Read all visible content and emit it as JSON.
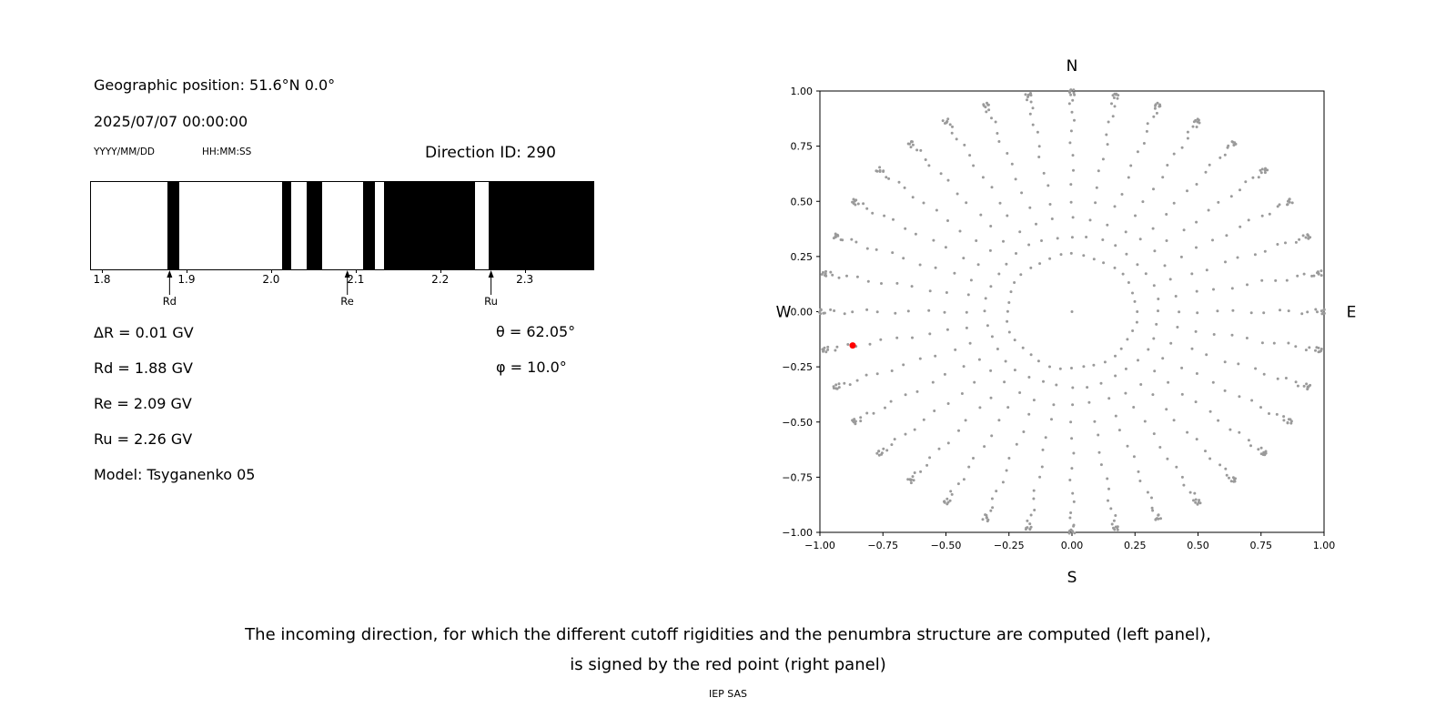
{
  "left_panel": {
    "geographic_position": "Geographic position: 51.6°N 0.0°",
    "datetime": "2025/07/07 00:00:00",
    "date_format_label": "YYYY/MM/DD",
    "time_format_label": "HH:MM:SS",
    "direction_id": "Direction ID: 290",
    "marker_arrow_icon": "up-arrow",
    "info": {
      "delta_r": "ΔR = 0.01 GV",
      "rd": "Rd = 1.88 GV",
      "re": "Re = 2.09 GV",
      "ru": "Ru = 2.26 GV",
      "theta": "θ = 62.05°",
      "phi": "φ = 10.0°",
      "model": "Model: Tsyganenko 05"
    }
  },
  "caption": {
    "line1": "The incoming direction, for which the different cutoff rigidities and the penumbra structure are computed (left panel),",
    "line2": "is signed by the red point (right panel)",
    "credit": "IEP SAS"
  },
  "chart_data": [
    {
      "type": "bar",
      "name": "penumbra-structure",
      "xlim": [
        1.786,
        2.38
      ],
      "xticks": [
        1.8,
        1.9,
        2.0,
        2.1,
        2.2,
        2.3
      ],
      "xtick_labels": [
        "1.8",
        "1.9",
        "2.0",
        "2.1",
        "2.2",
        "2.3"
      ],
      "black_intervals_gv": [
        [
          1.876,
          1.89
        ],
        [
          2.012,
          2.023
        ],
        [
          2.041,
          2.059
        ],
        [
          2.108,
          2.122
        ],
        [
          2.133,
          2.24
        ],
        [
          2.256,
          2.38
        ]
      ],
      "markers": [
        {
          "label": "Rd",
          "value_gv": 1.88
        },
        {
          "label": "Re",
          "value_gv": 2.09
        },
        {
          "label": "Ru",
          "value_gv": 2.26
        }
      ],
      "bar_color_black": "#000000",
      "bar_color_white": "#ffffff"
    },
    {
      "type": "scatter",
      "name": "incoming-direction-map",
      "xlim": [
        -1,
        1
      ],
      "ylim": [
        -1,
        1
      ],
      "xticks": [
        -1,
        -0.75,
        -0.5,
        -0.25,
        0,
        0.25,
        0.5,
        0.75,
        1
      ],
      "xtick_labels": [
        "−1.00",
        "−0.75",
        "−0.50",
        "−0.25",
        "0.00",
        "0.25",
        "0.50",
        "0.75",
        "1.00"
      ],
      "yticks": [
        -1,
        -0.75,
        -0.5,
        -0.25,
        0,
        0.25,
        0.5,
        0.75,
        1
      ],
      "ytick_labels": [
        "−1.00",
        "−0.75",
        "−0.50",
        "−0.25",
        "0.00",
        "0.25",
        "0.50",
        "0.75",
        "1.00"
      ],
      "compass": {
        "top": "N",
        "bottom": "S",
        "left": "W",
        "right": "E"
      },
      "grid_points": {
        "color": "#9a9a9a",
        "azimuth_count": 36,
        "azimuth_step_deg": 10,
        "zenith_deg": [
          15,
          20,
          25,
          30,
          35,
          40,
          45,
          50,
          55,
          60,
          65,
          70,
          74,
          78,
          81,
          84,
          86,
          88,
          89,
          90
        ],
        "radius_rule": "sin(zenith)",
        "center_dot": [
          0,
          0
        ]
      },
      "red_point": {
        "x": -0.87,
        "y": -0.153,
        "color": "#ff0000",
        "theta_deg": 62.05,
        "phi_deg": 10.0,
        "direction_id": 290
      }
    }
  ]
}
